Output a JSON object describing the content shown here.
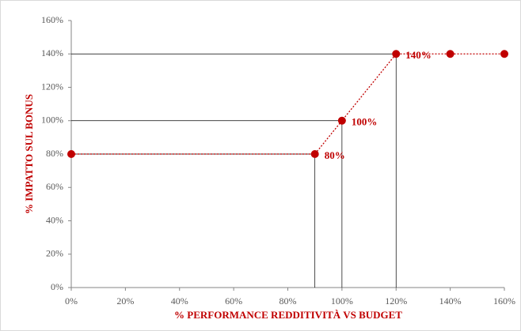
{
  "chart_data": {
    "type": "line",
    "xlabel": "% PERFORMANCE REDDITIVITÀ VS BUDGET",
    "ylabel": "% IMPATTO SUL BONUS",
    "x": [
      0,
      90,
      100,
      120,
      140,
      160
    ],
    "series": [
      {
        "color": "#c00000",
        "values": [
          80,
          80,
          100,
          140,
          140,
          140
        ],
        "value_labels": [
          null,
          "80%",
          "100%",
          "140%",
          null,
          null
        ]
      }
    ],
    "xlim": [
      0,
      160
    ],
    "xticks": [
      {
        "value": 0,
        "label": "0%"
      },
      {
        "value": 20,
        "label": "20%"
      },
      {
        "value": 40,
        "label": "40%"
      },
      {
        "value": 60,
        "label": "60%"
      },
      {
        "value": 80,
        "label": "80%"
      },
      {
        "value": 100,
        "label": "100%"
      },
      {
        "value": 120,
        "label": "120%"
      },
      {
        "value": 140,
        "label": "140%"
      },
      {
        "value": 160,
        "label": "160%"
      }
    ],
    "ylim": [
      0,
      160
    ],
    "yticks": [
      {
        "value": 0,
        "label": "0%"
      },
      {
        "value": 20,
        "label": "20%"
      },
      {
        "value": 40,
        "label": "40%"
      },
      {
        "value": 60,
        "label": "60%"
      },
      {
        "value": 80,
        "label": "80%"
      },
      {
        "value": 100,
        "label": "100%"
      },
      {
        "value": 120,
        "label": "120%"
      },
      {
        "value": 140,
        "label": "140%"
      },
      {
        "value": 160,
        "label": "160%"
      }
    ],
    "grid": false,
    "drop_lines": true
  }
}
